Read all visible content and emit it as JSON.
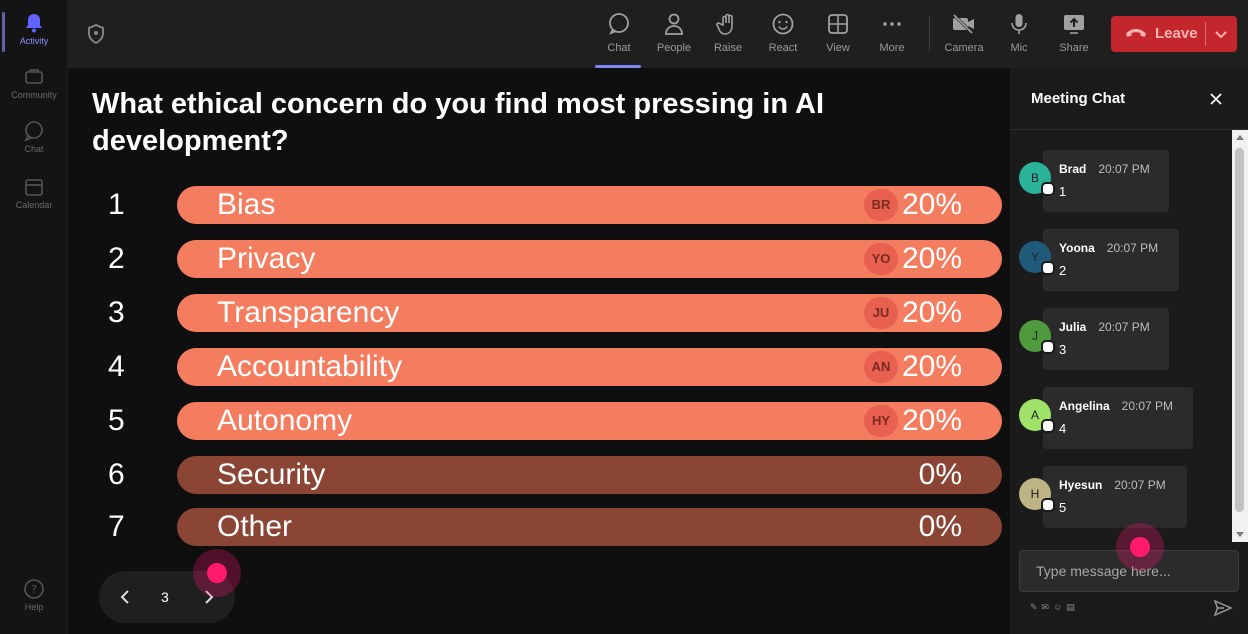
{
  "rail": {
    "items": [
      {
        "label": "Activity",
        "icon": "bell-icon"
      },
      {
        "label": "Community",
        "icon": "community-icon"
      },
      {
        "label": "Chat",
        "icon": "chat-icon"
      },
      {
        "label": "Calendar",
        "icon": "calendar-icon"
      }
    ],
    "help_label": "Help"
  },
  "toolbar": {
    "buttons": [
      {
        "label": "Chat",
        "icon": "chat-icon"
      },
      {
        "label": "People",
        "icon": "people-icon"
      },
      {
        "label": "Raise",
        "icon": "hand-icon"
      },
      {
        "label": "React",
        "icon": "smiley-icon"
      },
      {
        "label": "View",
        "icon": "grid-icon"
      },
      {
        "label": "More",
        "icon": "more-icon"
      },
      {
        "label": "Camera",
        "icon": "camera-off-icon"
      },
      {
        "label": "Mic",
        "icon": "mic-icon"
      },
      {
        "label": "Share",
        "icon": "share-icon"
      }
    ],
    "leave_label": "Leave",
    "leave_color": "#c4262e"
  },
  "poll": {
    "question": "What ethical concern do you find most pressing in AI development?",
    "options": [
      {
        "num": "1",
        "label": "Bias",
        "badge": "BR",
        "pct": "20%",
        "filled": true
      },
      {
        "num": "2",
        "label": "Privacy",
        "badge": "YO",
        "pct": "20%",
        "filled": true
      },
      {
        "num": "3",
        "label": "Transparency",
        "badge": "JU",
        "pct": "20%",
        "filled": true
      },
      {
        "num": "4",
        "label": "Accountability",
        "badge": "AN",
        "pct": "20%",
        "filled": true
      },
      {
        "num": "5",
        "label": "Autonomy",
        "badge": "HY",
        "pct": "20%",
        "filled": true
      },
      {
        "num": "6",
        "label": "Security",
        "badge": "",
        "pct": "0%",
        "filled": false
      },
      {
        "num": "7",
        "label": "Other",
        "badge": "",
        "pct": "0%",
        "filled": false
      }
    ],
    "bar_color": "#f47d60",
    "bar_empty_color": "#8a4535",
    "page": "3"
  },
  "chat": {
    "title": "Meeting Chat",
    "messages": [
      {
        "initial": "B",
        "name": "Brad",
        "time": "20:07 PM",
        "text": "1",
        "color": "#2bb39a"
      },
      {
        "initial": "Y",
        "name": "Yoona",
        "time": "20:07 PM",
        "text": "2",
        "color": "#1f5a7a"
      },
      {
        "initial": "J",
        "name": "Julia",
        "time": "20:07 PM",
        "text": "3",
        "color": "#4f9a3c"
      },
      {
        "initial": "A",
        "name": "Angelina",
        "time": "20:07 PM",
        "text": "4",
        "color": "#9fe26a"
      },
      {
        "initial": "H",
        "name": "Hyesun",
        "time": "20:07 PM",
        "text": "5",
        "color": "#bdb384"
      }
    ],
    "input_placeholder": "Type message here..."
  }
}
